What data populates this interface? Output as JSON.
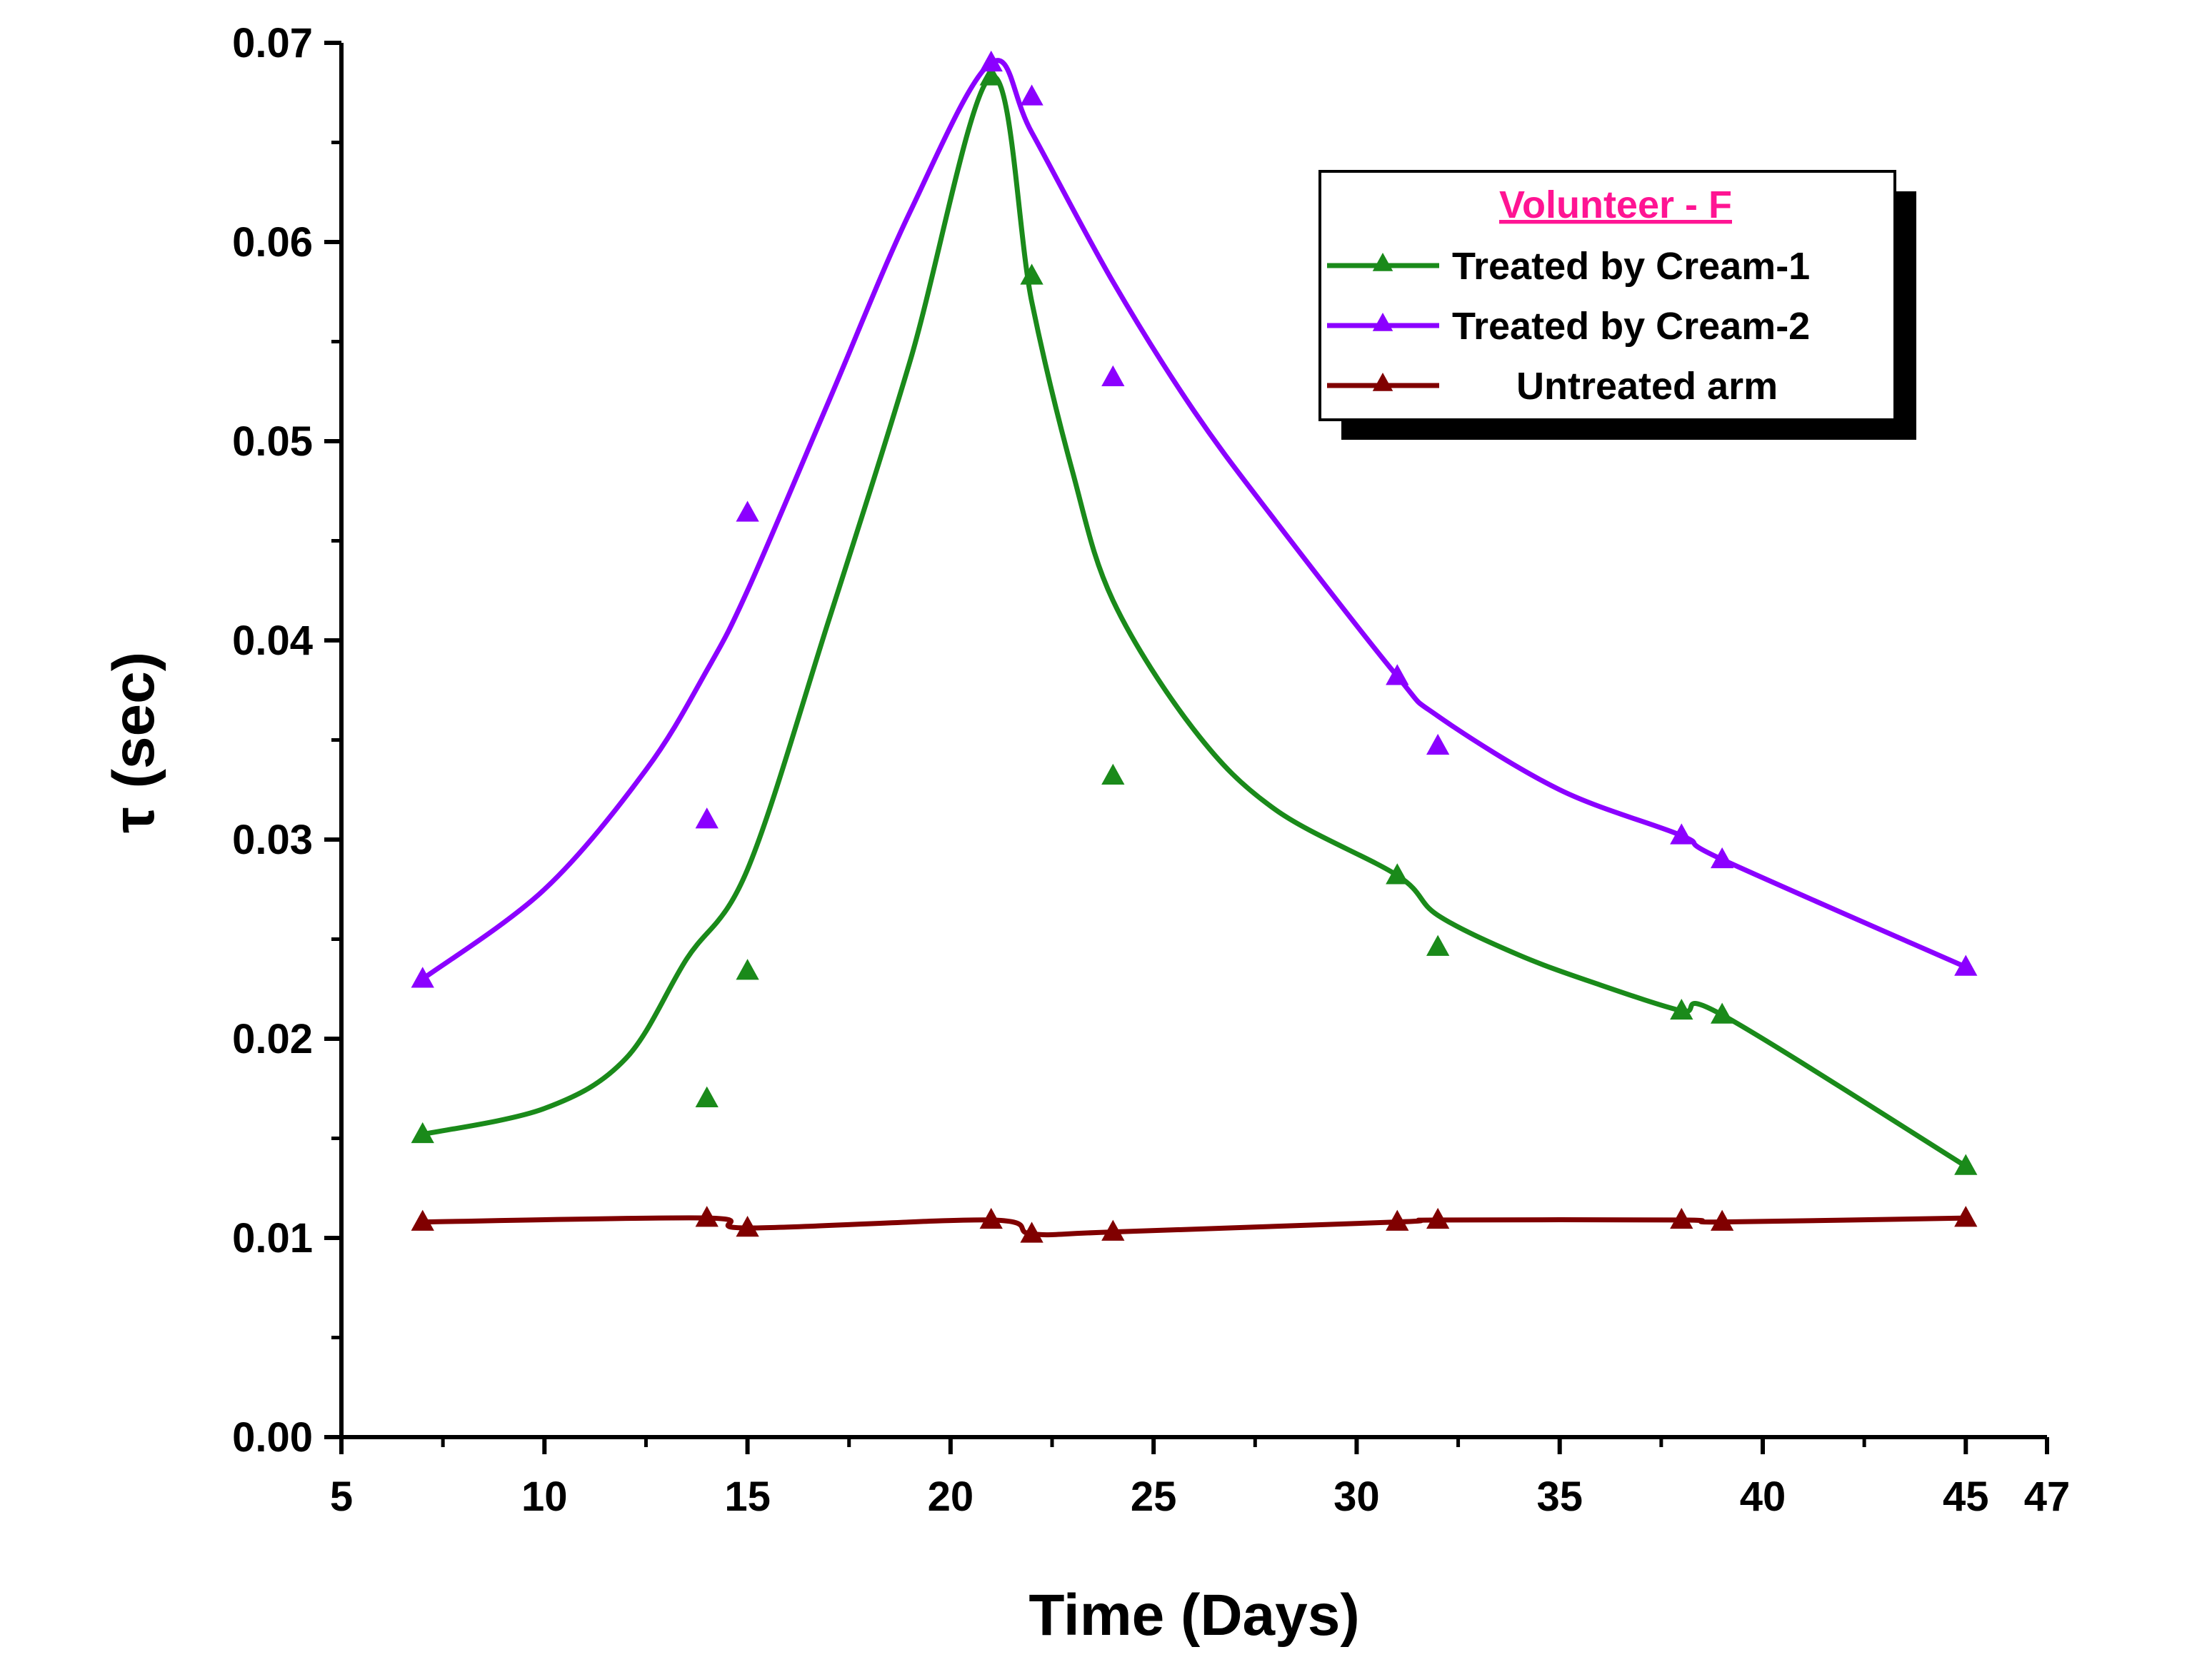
{
  "chart_data": {
    "type": "line",
    "xlabel": "Time (Days)",
    "ylabel": "(sec)",
    "ylabel_symbol": "τ",
    "xlim": [
      5,
      47
    ],
    "ylim": [
      0,
      0.07
    ],
    "x_ticks": [
      "5",
      "10",
      "15",
      "20",
      "25",
      "30",
      "35",
      "40",
      "45",
      "47"
    ],
    "x_tick_values": [
      5,
      10,
      15,
      20,
      25,
      30,
      35,
      40,
      45,
      47
    ],
    "y_ticks": [
      "0.00",
      "0.01",
      "0.02",
      "0.03",
      "0.04",
      "0.05",
      "0.06",
      "0.07"
    ],
    "y_tick_values": [
      0,
      0.01,
      0.02,
      0.03,
      0.04,
      0.05,
      0.06,
      0.07
    ],
    "grid": false,
    "legend_position": "top-right",
    "legend_title": "Volunteer - F",
    "legend_title_color": "#ff1493",
    "x": [
      7,
      14,
      15,
      21,
      22,
      24,
      31,
      32,
      38,
      39,
      45
    ],
    "series": [
      {
        "name": "Treated by Cream-1",
        "color": "#1a8a1a",
        "marker": "triangle",
        "points": [
          0.0152,
          0.017,
          0.0234,
          0.0683,
          0.0583,
          0.0332,
          0.0282,
          0.0246,
          0.0214,
          0.0212,
          0.0136
        ],
        "curve": [
          [
            7,
            0.0152
          ],
          [
            10,
            0.0165
          ],
          [
            12,
            0.019
          ],
          [
            13.5,
            0.024
          ],
          [
            15,
            0.0285
          ],
          [
            17,
            0.041
          ],
          [
            19,
            0.054
          ],
          [
            21,
            0.0683
          ],
          [
            22,
            0.057
          ],
          [
            23,
            0.0485
          ],
          [
            24,
            0.042
          ],
          [
            26,
            0.0355
          ],
          [
            28,
            0.0315
          ],
          [
            31,
            0.0282
          ],
          [
            32,
            0.0262
          ],
          [
            34,
            0.0242
          ],
          [
            36,
            0.0227
          ],
          [
            38,
            0.0214
          ],
          [
            39,
            0.0212
          ],
          [
            45,
            0.0136
          ]
        ]
      },
      {
        "name": "Treated by Cream-2",
        "color": "#8b00ff",
        "marker": "triangle",
        "points": [
          0.023,
          0.031,
          0.0464,
          0.069,
          0.0673,
          0.0532,
          0.0382,
          0.0347,
          0.0302,
          0.029,
          0.0236
        ],
        "curve": [
          [
            7,
            0.023
          ],
          [
            10,
            0.0275
          ],
          [
            12.5,
            0.0335
          ],
          [
            14,
            0.0385
          ],
          [
            15,
            0.0425
          ],
          [
            17,
            0.052
          ],
          [
            19,
            0.0615
          ],
          [
            21,
            0.069
          ],
          [
            22,
            0.0655
          ],
          [
            24,
            0.058
          ],
          [
            26,
            0.0515
          ],
          [
            28,
            0.046
          ],
          [
            31,
            0.0382
          ],
          [
            32,
            0.0362
          ],
          [
            35,
            0.0325
          ],
          [
            38,
            0.0302
          ],
          [
            39,
            0.029
          ],
          [
            45,
            0.0236
          ]
        ]
      },
      {
        "name": "Untreated arm",
        "color": "#800000",
        "marker": "triangle",
        "points": [
          0.0108,
          0.011,
          0.0105,
          0.0109,
          0.0102,
          0.0103,
          0.0108,
          0.0109,
          0.0109,
          0.0108,
          0.011
        ],
        "curve": [
          [
            7,
            0.0108
          ],
          [
            14,
            0.011
          ],
          [
            15,
            0.0105
          ],
          [
            21,
            0.0109
          ],
          [
            22,
            0.0102
          ],
          [
            24,
            0.0103
          ],
          [
            31,
            0.0108
          ],
          [
            32,
            0.0109
          ],
          [
            38,
            0.0109
          ],
          [
            39,
            0.0108
          ],
          [
            45,
            0.011
          ]
        ]
      }
    ]
  }
}
